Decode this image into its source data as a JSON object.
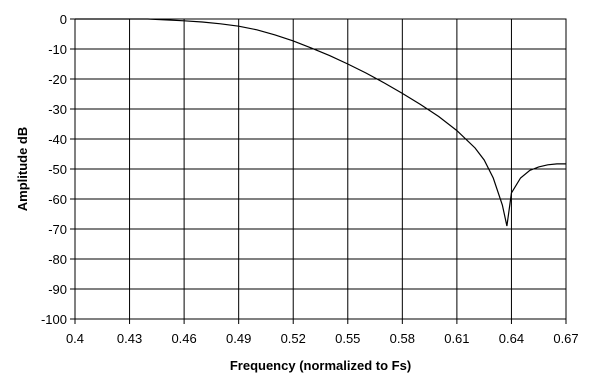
{
  "chart_data": {
    "type": "line",
    "xlabel": "Frequency (normalized to Fs)",
    "ylabel": "Amplitude dB",
    "xlim": [
      0.4,
      0.67
    ],
    "ylim": [
      -100,
      0
    ],
    "xticks": [
      "0.4",
      "0.43",
      "0.46",
      "0.49",
      "0.52",
      "0.55",
      "0.58",
      "0.61",
      "0.64",
      "0.67"
    ],
    "yticks": [
      "0",
      "-10",
      "-20",
      "-30",
      "-40",
      "-50",
      "-60",
      "-70",
      "-80",
      "-90",
      "-100"
    ],
    "grid": true,
    "series": [
      {
        "x": [
          0.4,
          0.42,
          0.44,
          0.45,
          0.46,
          0.47,
          0.48,
          0.49,
          0.5,
          0.51,
          0.52,
          0.53,
          0.54,
          0.55,
          0.56,
          0.57,
          0.58,
          0.59,
          0.6,
          0.61,
          0.62,
          0.625,
          0.63,
          0.635,
          0.6375,
          0.64,
          0.645,
          0.65,
          0.655,
          0.66,
          0.665,
          0.67
        ],
        "y": [
          0,
          0,
          0,
          -0.3,
          -0.6,
          -1.0,
          -1.6,
          -2.4,
          -3.6,
          -5.3,
          -7.3,
          -9.7,
          -12.2,
          -15.0,
          -18.0,
          -21.3,
          -24.8,
          -28.5,
          -32.5,
          -37.2,
          -43.0,
          -47.0,
          -53.0,
          -62.0,
          -69.0,
          -58.0,
          -53.0,
          -50.5,
          -49.3,
          -48.6,
          -48.3,
          -48.3
        ]
      }
    ]
  }
}
